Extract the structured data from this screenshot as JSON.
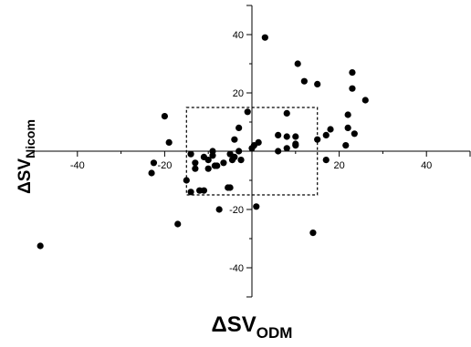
{
  "chart_data": {
    "type": "scatter",
    "title": "",
    "xlabel": {
      "main": "ΔSV",
      "sub": "ODM"
    },
    "ylabel": {
      "main": "ΔSV",
      "sub": "Nicom"
    },
    "xlim": [
      -50,
      50
    ],
    "ylim": [
      -50,
      50
    ],
    "xticks": [
      -40,
      -20,
      20,
      40
    ],
    "yticks": [
      -40,
      -20,
      20,
      40
    ],
    "grid": false,
    "legend": "none",
    "marker_color": "#000000",
    "reference_box": {
      "x": [
        -15,
        15
      ],
      "y": [
        -15,
        15
      ],
      "style": "dashed"
    },
    "points": [
      [
        -48.5,
        -32.5
      ],
      [
        -22.5,
        -4
      ],
      [
        -23,
        -7.5
      ],
      [
        -20,
        12
      ],
      [
        -19,
        3
      ],
      [
        -17,
        -25
      ],
      [
        -15,
        -10
      ],
      [
        -14,
        -1
      ],
      [
        -14,
        -14
      ],
      [
        -13,
        -6
      ],
      [
        -13,
        -4
      ],
      [
        -12,
        -13.5
      ],
      [
        -11,
        -13.5
      ],
      [
        -11,
        -2
      ],
      [
        -10,
        -3
      ],
      [
        -10,
        -6
      ],
      [
        -9,
        0
      ],
      [
        -9,
        -1.5
      ],
      [
        -8.5,
        -5
      ],
      [
        -8,
        -5
      ],
      [
        -7.5,
        -20
      ],
      [
        -6.5,
        -4
      ],
      [
        -5.5,
        -12.5
      ],
      [
        -5,
        -1
      ],
      [
        -5,
        -12.5
      ],
      [
        -4.5,
        -3
      ],
      [
        -4,
        -2
      ],
      [
        -4,
        4
      ],
      [
        -3,
        0
      ],
      [
        -3,
        8
      ],
      [
        -2.5,
        -3
      ],
      [
        -1,
        13.5
      ],
      [
        0,
        1
      ],
      [
        0.5,
        2
      ],
      [
        1,
        -19
      ],
      [
        1.5,
        3
      ],
      [
        3,
        39
      ],
      [
        6,
        5.5
      ],
      [
        6,
        0
      ],
      [
        8,
        1
      ],
      [
        8,
        13
      ],
      [
        8,
        5
      ],
      [
        10,
        2
      ],
      [
        10,
        5
      ],
      [
        10,
        2.5
      ],
      [
        10.5,
        30
      ],
      [
        12,
        24
      ],
      [
        14,
        -28
      ],
      [
        15,
        4
      ],
      [
        15,
        23
      ],
      [
        17,
        -3
      ],
      [
        17,
        5.5
      ],
      [
        18,
        7.5
      ],
      [
        21.5,
        2
      ],
      [
        22,
        8
      ],
      [
        22,
        12.5
      ],
      [
        23,
        27
      ],
      [
        23,
        21.5
      ],
      [
        23.5,
        6
      ],
      [
        26,
        17.5
      ]
    ]
  }
}
